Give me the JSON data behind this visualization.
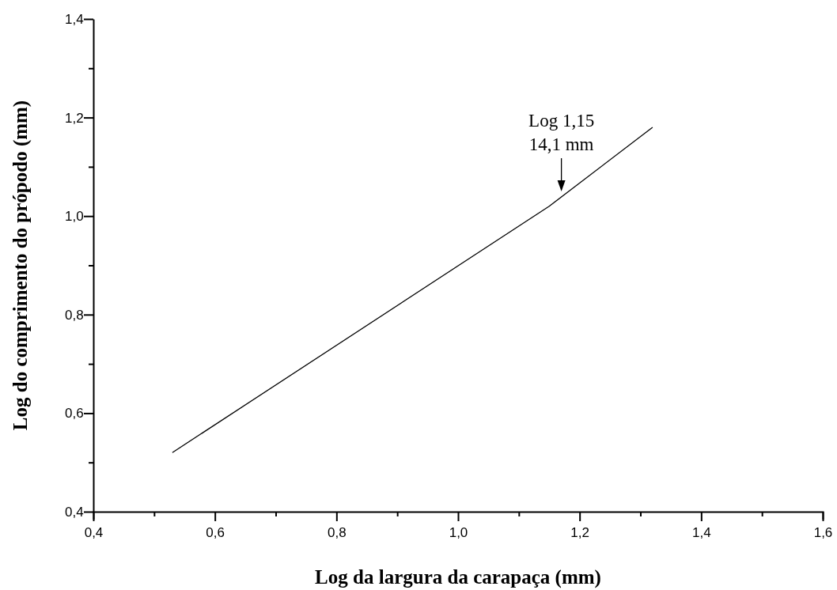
{
  "chart_data": {
    "type": "line",
    "xlabel": "Log da largura da carapaça (mm)",
    "ylabel": "Log do comprimento do própodo (mm)",
    "x": [
      0.53,
      1.15,
      1.32
    ],
    "series": [
      {
        "color": "#000000",
        "values": [
          0.52,
          1.02,
          1.18
        ]
      }
    ],
    "xlim": [
      0.4,
      1.6
    ],
    "ylim": [
      0.4,
      1.4
    ],
    "xticks": [
      {
        "value": 0.4,
        "label": "0,4"
      },
      {
        "value": 0.5,
        "label": null
      },
      {
        "value": 0.6,
        "label": "0,6"
      },
      {
        "value": 0.7,
        "label": null
      },
      {
        "value": 0.8,
        "label": "0,8"
      },
      {
        "value": 0.9,
        "label": null
      },
      {
        "value": 1.0,
        "label": "1,0"
      },
      {
        "value": 1.1,
        "label": null
      },
      {
        "value": 1.2,
        "label": "1,2"
      },
      {
        "value": 1.3,
        "label": null
      },
      {
        "value": 1.4,
        "label": "1,4"
      },
      {
        "value": 1.5,
        "label": null
      },
      {
        "value": 1.6,
        "label": "1,6"
      }
    ],
    "yticks": [
      {
        "value": 0.4,
        "label": "0,4"
      },
      {
        "value": 0.5,
        "label": null
      },
      {
        "value": 0.6,
        "label": "0,6"
      },
      {
        "value": 0.7,
        "label": null
      },
      {
        "value": 0.8,
        "label": "0,8"
      },
      {
        "value": 0.9,
        "label": null
      },
      {
        "value": 1.0,
        "label": "1,0"
      },
      {
        "value": 1.1,
        "label": null
      },
      {
        "value": 1.2,
        "label": "1,2"
      },
      {
        "value": 1.3,
        "label": null
      },
      {
        "value": 1.4,
        "label": "1,4"
      }
    ],
    "annotations": [
      {
        "text": "Log 1,15\n14,1 mm",
        "x": 1.17,
        "y": 1.05
      }
    ],
    "grid": false,
    "marker": "none",
    "line_style": "solid"
  }
}
